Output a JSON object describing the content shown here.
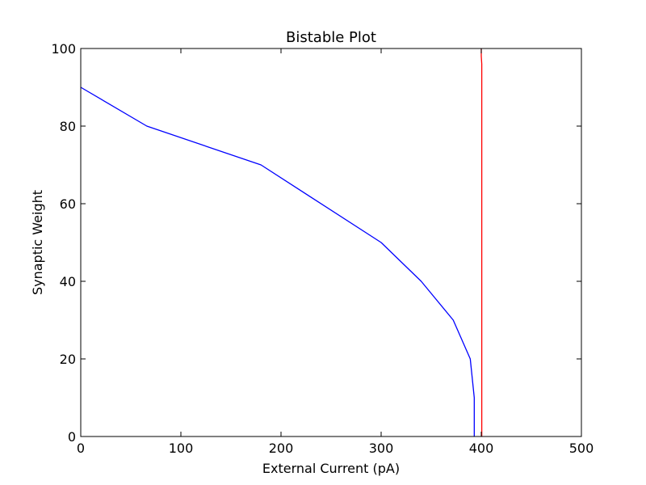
{
  "chart_data": {
    "type": "line",
    "title": "Bistable Plot",
    "xlabel": "External Current (pA)",
    "ylabel": "Synaptic Weight",
    "xlim": [
      0,
      500
    ],
    "ylim": [
      0,
      100
    ],
    "xticks": [
      "0",
      "100",
      "200",
      "300",
      "400",
      "500"
    ],
    "yticks": [
      "0",
      "20",
      "40",
      "60",
      "80",
      "100"
    ],
    "grid": false,
    "series": [
      {
        "color": "#0000ff",
        "points": [
          [
            0,
            90
          ],
          [
            66,
            80
          ],
          [
            180,
            70
          ],
          [
            300,
            50
          ],
          [
            340,
            40
          ],
          [
            372,
            30
          ],
          [
            389,
            20
          ],
          [
            393,
            10
          ],
          [
            393,
            0
          ]
        ]
      },
      {
        "color": "#ff0000",
        "points": [
          [
            400.5,
            0
          ],
          [
            400.5,
            96
          ],
          [
            400,
            98
          ],
          [
            400,
            100
          ]
        ]
      }
    ]
  }
}
